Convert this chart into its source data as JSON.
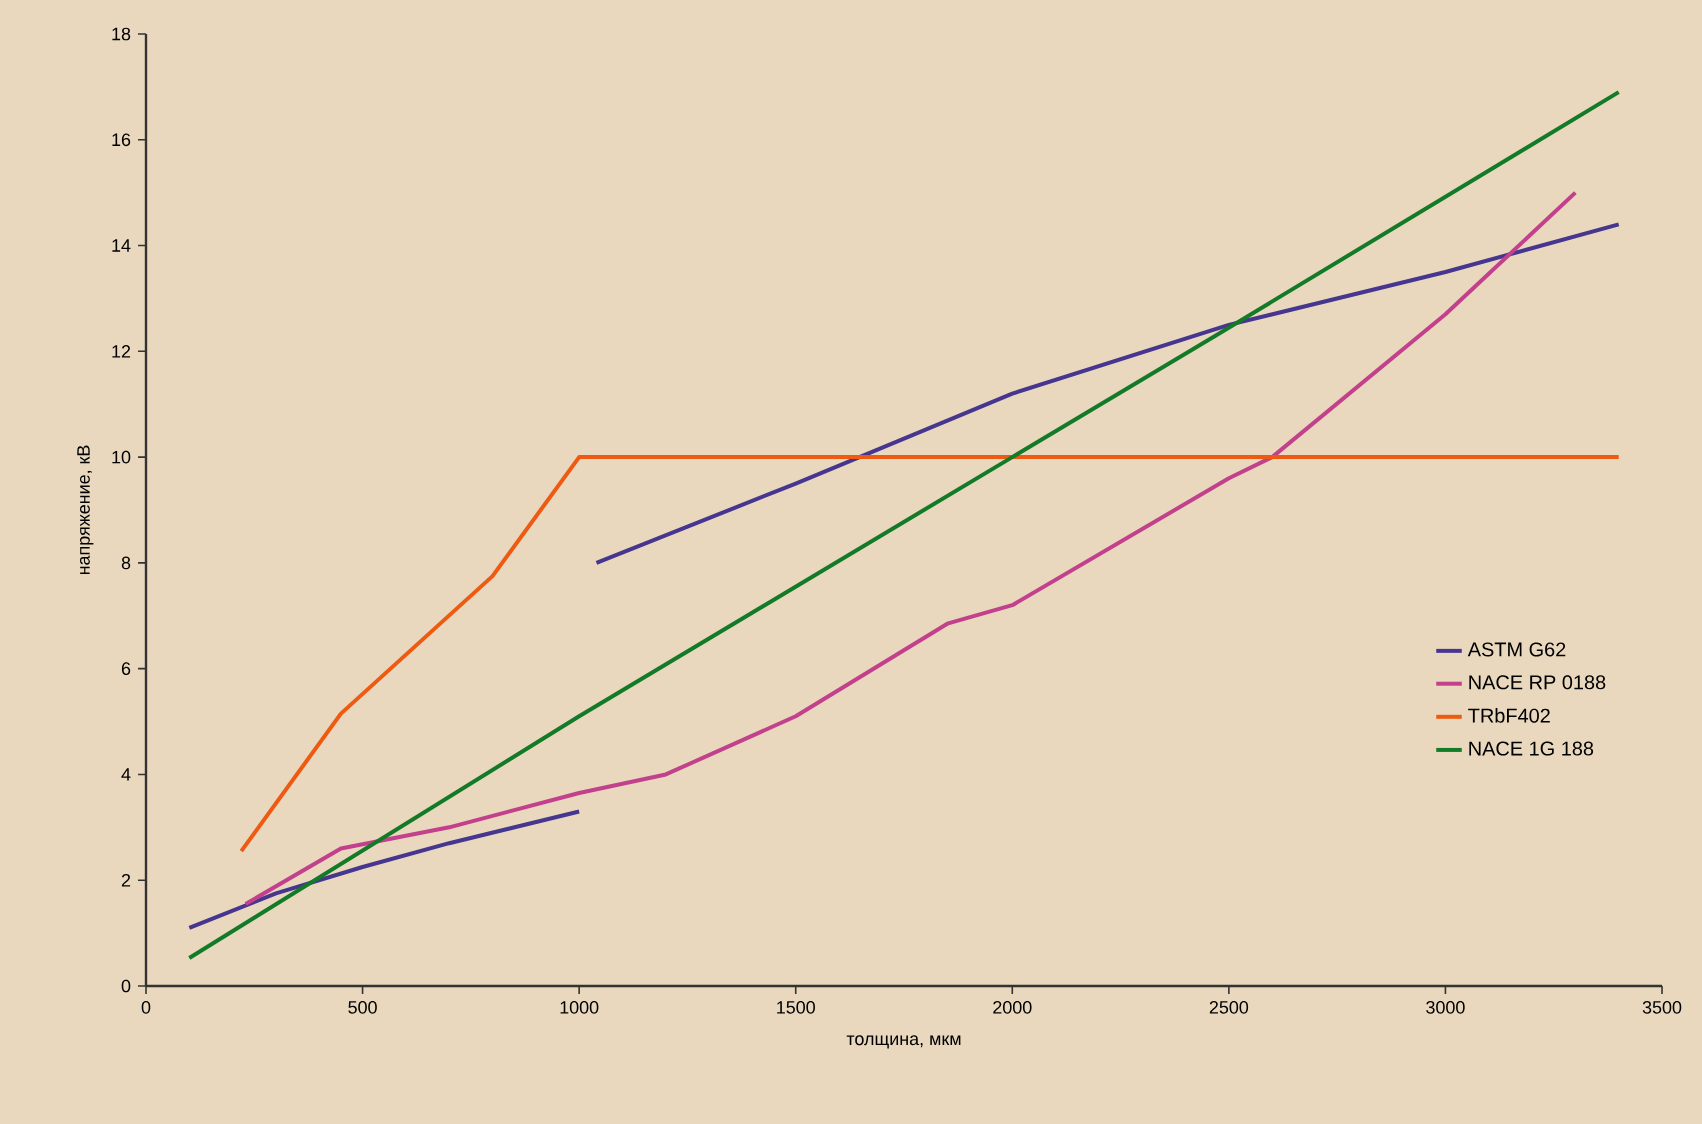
{
  "chart_data": {
    "type": "line",
    "xlabel": "толщина, мкм",
    "ylabel": "напряжение, кВ",
    "xlim": [
      0,
      3500
    ],
    "xticks": [
      0,
      500,
      1000,
      1500,
      2000,
      2500,
      3000,
      3500
    ],
    "ylim": [
      0,
      18
    ],
    "yticks": [
      0,
      2,
      4,
      6,
      8,
      10,
      12,
      14,
      16,
      18
    ],
    "legend": "right",
    "series": [
      {
        "name": "ASTM G62",
        "color": "#46368f",
        "x": [
          100,
          300,
          500,
          700,
          1000,
          1020,
          1040,
          1500,
          2000,
          2500,
          3000,
          3400
        ],
        "values": [
          1.1,
          1.75,
          2.25,
          2.7,
          3.3,
          null,
          8.0,
          9.5,
          11.2,
          12.5,
          13.5,
          14.4
        ]
      },
      {
        "name": "NACE RP 0188",
        "color": "#c2408c",
        "x": [
          230,
          450,
          700,
          1000,
          1200,
          1500,
          1850,
          2000,
          2500,
          2600,
          3000,
          3300
        ],
        "values": [
          1.55,
          2.6,
          3.0,
          3.65,
          4.0,
          5.1,
          6.85,
          7.2,
          9.6,
          10.0,
          12.7,
          15.0
        ]
      },
      {
        "name": "TRbF402",
        "color": "#ee5a12",
        "x": [
          220,
          450,
          800,
          1000,
          3400
        ],
        "values": [
          2.55,
          5.15,
          7.75,
          10.0,
          10.0
        ]
      },
      {
        "name": "NACE 1G  188",
        "color": "#137a28",
        "x": [
          100,
          1000,
          2000,
          2470,
          3400
        ],
        "values": [
          0.53,
          5.1,
          10.0,
          12.3,
          16.9
        ]
      }
    ]
  }
}
